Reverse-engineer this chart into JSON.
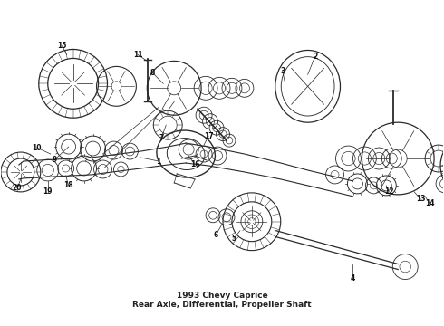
{
  "bg_color": "#ffffff",
  "title": "1993 Chevy Caprice\nRear Axle, Differential, Propeller Shaft",
  "title_fontsize": 6.5,
  "line_color": "#2a2a2a",
  "lw_main": 0.7,
  "fig_w": 4.9,
  "fig_h": 3.6,
  "dpi": 100,
  "xlim": [
    0,
    490
  ],
  "ylim": [
    0,
    360
  ]
}
